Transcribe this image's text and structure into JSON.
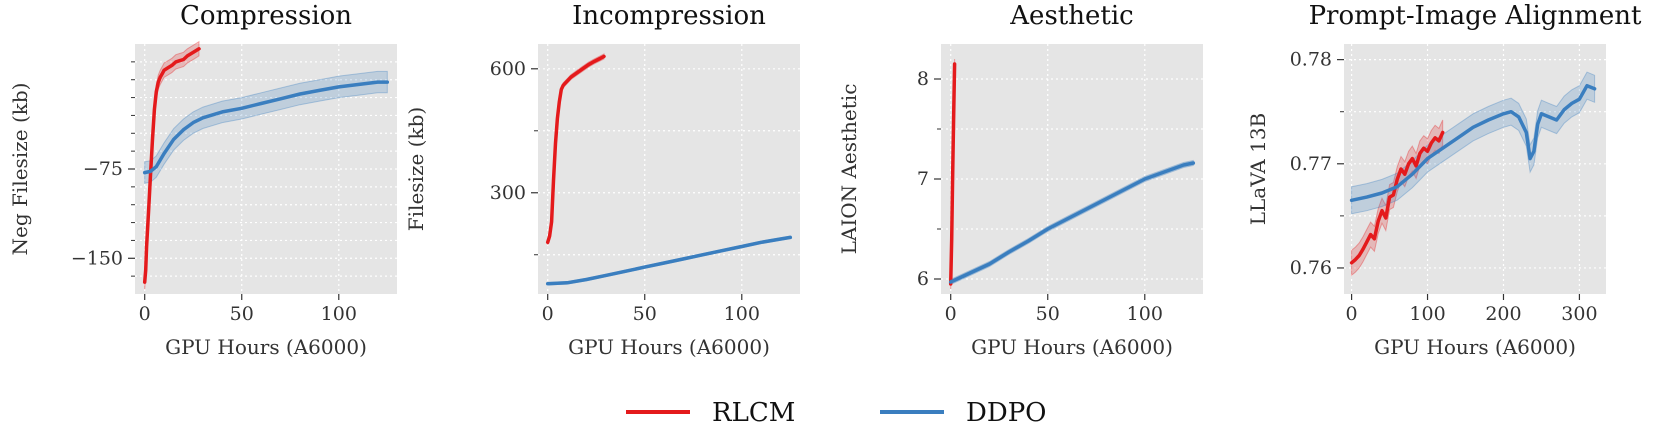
{
  "figure": {
    "legend": [
      {
        "name": "RLCM",
        "color": "#e41a1c"
      },
      {
        "name": "DDPO",
        "color": "#3a7ebf"
      }
    ]
  },
  "chart_data": [
    {
      "type": "line",
      "title": "Compression",
      "xlabel": "GPU Hours (A6000)",
      "ylabel": "Neg Filesize (kb)",
      "xlim": [
        -5,
        130
      ],
      "ylim": [
        -180,
        30
      ],
      "xticks": [
        0,
        50,
        100
      ],
      "xtick_labels": [
        "0",
        "50",
        "100"
      ],
      "yticks": [
        -150,
        -75
      ],
      "ytick_labels": [
        "−150",
        "−75"
      ],
      "minor_yticks": [
        -165,
        -135,
        -120,
        -105,
        -90,
        -60,
        -45,
        -30,
        -15,
        0,
        15
      ],
      "series": [
        {
          "name": "RLCM",
          "color": "#e41a1c",
          "band": 6,
          "x": [
            0,
            0.5,
            1,
            2,
            3,
            4,
            5,
            6,
            7,
            8,
            9,
            10,
            12,
            14,
            16,
            18,
            20,
            22,
            24,
            26,
            28
          ],
          "y": [
            -170,
            -160,
            -140,
            -110,
            -80,
            -50,
            -25,
            -10,
            -2,
            2,
            5,
            8,
            10,
            12,
            15,
            16,
            17,
            20,
            22,
            24,
            26
          ]
        },
        {
          "name": "DDPO",
          "color": "#3a7ebf",
          "band": 9,
          "x": [
            0,
            3,
            6,
            10,
            15,
            20,
            25,
            30,
            40,
            50,
            60,
            70,
            80,
            90,
            100,
            110,
            120,
            125
          ],
          "y": [
            -78,
            -77,
            -73,
            -62,
            -50,
            -42,
            -36,
            -32,
            -27,
            -24,
            -20,
            -16,
            -12,
            -9,
            -6,
            -4,
            -2,
            -2
          ]
        }
      ]
    },
    {
      "type": "line",
      "title": "Incompression",
      "xlabel": "GPU Hours (A6000)",
      "ylabel": "Filesize (kb)",
      "xlim": [
        -5,
        130
      ],
      "ylim": [
        55,
        660
      ],
      "xticks": [
        0,
        50,
        100
      ],
      "xtick_labels": [
        "0",
        "50",
        "100"
      ],
      "yticks": [
        300,
        600
      ],
      "ytick_labels": [
        "300",
        "600"
      ],
      "minor_yticks": [
        150,
        450
      ],
      "series": [
        {
          "name": "RLCM",
          "color": "#e41a1c",
          "band": 6,
          "x": [
            0,
            1,
            2,
            3,
            4,
            5,
            6,
            7,
            8,
            10,
            12,
            15,
            18,
            21,
            24,
            27,
            29
          ],
          "y": [
            180,
            195,
            230,
            330,
            420,
            480,
            520,
            550,
            560,
            570,
            580,
            590,
            600,
            610,
            618,
            625,
            630
          ]
        },
        {
          "name": "DDPO",
          "color": "#3a7ebf",
          "band": 3,
          "x": [
            0,
            10,
            20,
            30,
            40,
            50,
            60,
            70,
            80,
            90,
            100,
            110,
            120,
            125
          ],
          "y": [
            80,
            82,
            90,
            100,
            110,
            120,
            130,
            140,
            150,
            160,
            170,
            180,
            188,
            192
          ]
        }
      ]
    },
    {
      "type": "line",
      "title": "Aesthetic",
      "xlabel": "GPU Hours (A6000)",
      "ylabel": "LAION Aesthetic",
      "xlim": [
        -5,
        130
      ],
      "ylim": [
        5.85,
        8.35
      ],
      "xticks": [
        0,
        50,
        100
      ],
      "xtick_labels": [
        "0",
        "50",
        "100"
      ],
      "yticks": [
        6,
        7,
        8
      ],
      "ytick_labels": [
        "6",
        "7",
        "8"
      ],
      "minor_yticks": [
        6.5,
        7.5
      ],
      "series": [
        {
          "name": "RLCM",
          "color": "#e41a1c",
          "band": 0.05,
          "x": [
            0,
            0.5,
            1,
            1.5,
            2
          ],
          "y": [
            5.95,
            6.4,
            7.0,
            7.6,
            8.15
          ]
        },
        {
          "name": "DDPO",
          "color": "#3a7ebf",
          "band": 0.025,
          "x": [
            0,
            10,
            20,
            30,
            40,
            50,
            60,
            70,
            80,
            90,
            100,
            110,
            120,
            125
          ],
          "y": [
            5.97,
            6.06,
            6.15,
            6.27,
            6.38,
            6.5,
            6.6,
            6.7,
            6.8,
            6.9,
            7.0,
            7.07,
            7.14,
            7.16
          ]
        }
      ]
    },
    {
      "type": "line",
      "title": "Prompt-Image Alignment",
      "xlabel": "GPU Hours (A6000)",
      "ylabel": "LLaVA 13B",
      "xlim": [
        -10,
        335
      ],
      "ylim": [
        0.7575,
        0.7815
      ],
      "xticks": [
        0,
        100,
        200,
        300
      ],
      "xtick_labels": [
        "0",
        "100",
        "200",
        "300"
      ],
      "yticks": [
        0.76,
        0.77,
        0.78
      ],
      "ytick_labels": [
        "0.76",
        "0.77",
        "0.78"
      ],
      "minor_yticks": [
        0.765,
        0.775
      ],
      "series": [
        {
          "name": "RLCM",
          "color": "#e41a1c",
          "band": 0.0012,
          "x": [
            0,
            5,
            10,
            15,
            20,
            25,
            30,
            35,
            40,
            45,
            50,
            55,
            60,
            65,
            70,
            75,
            80,
            85,
            90,
            95,
            100,
            105,
            110,
            115,
            120
          ],
          "y": [
            0.7605,
            0.7608,
            0.7612,
            0.7618,
            0.7625,
            0.7632,
            0.7628,
            0.7645,
            0.7655,
            0.7648,
            0.7668,
            0.767,
            0.7685,
            0.7695,
            0.769,
            0.77,
            0.7705,
            0.7698,
            0.771,
            0.7715,
            0.7712,
            0.772,
            0.7725,
            0.7722,
            0.773
          ]
        },
        {
          "name": "DDPO",
          "color": "#3a7ebf",
          "band": 0.0013,
          "x": [
            0,
            20,
            40,
            60,
            80,
            100,
            120,
            140,
            160,
            180,
            200,
            210,
            220,
            230,
            235,
            240,
            245,
            250,
            260,
            270,
            280,
            290,
            300,
            310,
            320
          ],
          "y": [
            0.7665,
            0.7668,
            0.7672,
            0.7678,
            0.769,
            0.7705,
            0.7715,
            0.7725,
            0.7735,
            0.7742,
            0.7748,
            0.775,
            0.7745,
            0.773,
            0.7705,
            0.7712,
            0.7738,
            0.7748,
            0.7745,
            0.7742,
            0.7752,
            0.7758,
            0.7762,
            0.7775,
            0.7772
          ]
        }
      ]
    }
  ]
}
